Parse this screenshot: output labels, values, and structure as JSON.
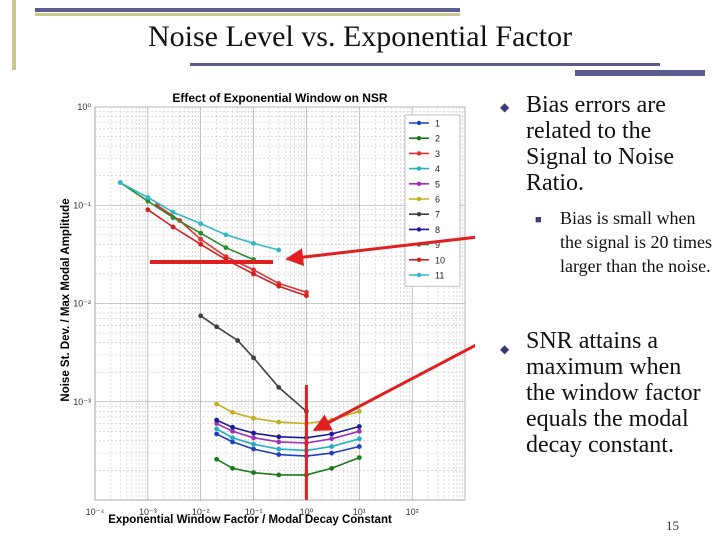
{
  "slide": {
    "title": "Noise Level vs. Exponential Factor",
    "bullets": [
      {
        "text": "Bias errors are related to the Signal to Noise Ratio.",
        "sub": "Bias is small when the signal is 20 times larger than the noise."
      },
      {
        "text": "SNR attains a maximum when the window factor equals the modal decay constant."
      }
    ],
    "page_number": "15"
  },
  "colors": {
    "accent": "#5b5b8f",
    "arrow": "#e02020",
    "accent_light": "#c8c88a"
  },
  "chart_data": {
    "type": "line",
    "title": "Effect of Exponential Window on NSR",
    "xlabel": "Exponential Window Factor / Modal Decay Constant",
    "ylabel": "Noise St. Dev. / Max Modal Amplitude",
    "xscale": "log",
    "yscale": "log",
    "xlim": [
      0.0001,
      1000
    ],
    "ylim": [
      0.0001,
      1
    ],
    "x_ticks": [
      "10⁻⁴",
      "10⁻³",
      "10⁻²",
      "10⁻¹",
      "10⁰",
      "10¹",
      "10²"
    ],
    "y_ticks": [
      "10⁰",
      "10⁻¹",
      "10⁻²",
      "10⁻³"
    ],
    "grid": true,
    "legend": {
      "position": "top-right",
      "visible_entries": [
        "1",
        "2",
        "3",
        "4",
        "5",
        "6",
        "7",
        "8",
        "9",
        "10",
        "11"
      ]
    },
    "series": [
      {
        "name": "1",
        "color": "#1f3fbf",
        "x": [
          0.02,
          0.04,
          0.1,
          0.3,
          1,
          3,
          10
        ],
        "y": [
          0.00047,
          0.00039,
          0.00033,
          0.00029,
          0.00028,
          0.0003,
          0.00035
        ]
      },
      {
        "name": "2",
        "color": "#1a7a1a",
        "x": [
          0.02,
          0.04,
          0.1,
          0.3,
          1,
          3,
          10
        ],
        "y": [
          0.00026,
          0.00021,
          0.00019,
          0.00018,
          0.00018,
          0.00021,
          0.00027
        ]
      },
      {
        "name": "3",
        "color": "#e03030",
        "x": [
          0.0015,
          0.004,
          0.01,
          0.03,
          0.1,
          0.3,
          1
        ],
        "y": [
          0.1,
          0.07,
          0.045,
          0.03,
          0.022,
          0.016,
          0.013
        ]
      },
      {
        "name": "4",
        "color": "#20b0c0",
        "x": [
          0.02,
          0.04,
          0.1,
          0.3,
          1,
          3,
          10
        ],
        "y": [
          0.00053,
          0.00043,
          0.00037,
          0.00033,
          0.00032,
          0.00035,
          0.00042
        ]
      },
      {
        "name": "5",
        "color": "#a030b0",
        "x": [
          0.02,
          0.04,
          0.1,
          0.3,
          1,
          3,
          10
        ],
        "y": [
          0.0006,
          0.0005,
          0.00043,
          0.00039,
          0.00038,
          0.00042,
          0.0005
        ]
      },
      {
        "name": "6",
        "color": "#c0b020",
        "x": [
          0.02,
          0.04,
          0.1,
          0.3,
          1,
          3,
          10
        ],
        "y": [
          0.00095,
          0.00078,
          0.00068,
          0.00062,
          0.0006,
          0.00065,
          0.0008
        ]
      },
      {
        "name": "7",
        "color": "#404040",
        "x": [
          0.01,
          0.02,
          0.05,
          0.1,
          0.3,
          1
        ],
        "y": [
          0.0075,
          0.0058,
          0.0042,
          0.0028,
          0.0014,
          0.0008
        ]
      },
      {
        "name": "8",
        "color": "#1a1a9a",
        "x": [
          0.02,
          0.04,
          0.1,
          0.3,
          1,
          3,
          10
        ],
        "y": [
          0.00065,
          0.00055,
          0.00048,
          0.00044,
          0.00043,
          0.00047,
          0.00056
        ]
      },
      {
        "name": "9",
        "color": "#2a8a2a",
        "x": [
          0.0003,
          0.001,
          0.003,
          0.01,
          0.03,
          0.1
        ],
        "y": [
          0.17,
          0.11,
          0.075,
          0.052,
          0.037,
          0.028
        ]
      },
      {
        "name": "10",
        "color": "#d02020",
        "x": [
          0.001,
          0.003,
          0.01,
          0.03,
          0.1,
          0.3,
          1
        ],
        "y": [
          0.09,
          0.06,
          0.04,
          0.028,
          0.02,
          0.015,
          0.012
        ]
      },
      {
        "name": "11",
        "color": "#30b8c8",
        "x": [
          0.0003,
          0.001,
          0.003,
          0.01,
          0.03,
          0.1,
          0.3
        ],
        "y": [
          0.17,
          0.12,
          0.085,
          0.065,
          0.05,
          0.041,
          0.035
        ]
      }
    ]
  }
}
